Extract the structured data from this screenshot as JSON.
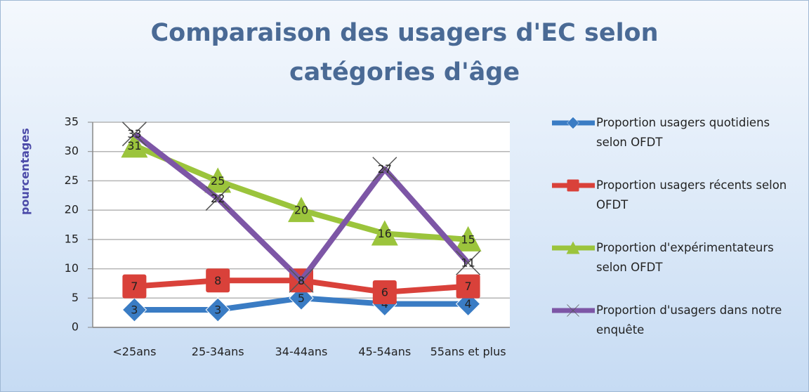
{
  "chart_data": {
    "type": "line",
    "title": "Comparaison des usagers d'EC selon catégories d'âge",
    "y_label": "pourcentages",
    "categories": [
      "<25ans",
      "25-34ans",
      "34-44ans",
      "45-54ans",
      "55ans et plus"
    ],
    "series": [
      {
        "name": "Proportion usagers quotidiens selon OFDT",
        "color": "#3a7cc4",
        "marker": "diamond",
        "values": [
          3,
          3,
          5,
          4,
          4
        ]
      },
      {
        "name": "Proportion usagers récents selon OFDT",
        "color": "#d9413a",
        "marker": "square",
        "values": [
          7,
          8,
          8,
          6,
          7
        ]
      },
      {
        "name": "Proportion d'expérimentateurs selon OFDT",
        "color": "#9bc43c",
        "marker": "triangle",
        "values": [
          31,
          25,
          20,
          16,
          15
        ]
      },
      {
        "name": "Proportion d'usagers dans notre enquête",
        "color": "#7d56a6",
        "marker": "x",
        "values": [
          33,
          22,
          8,
          27,
          11
        ]
      }
    ],
    "ylim": [
      0,
      35
    ],
    "yticks": [
      0,
      5,
      10,
      15,
      20,
      25,
      30,
      35
    ],
    "grid": true,
    "legend": "right"
  }
}
